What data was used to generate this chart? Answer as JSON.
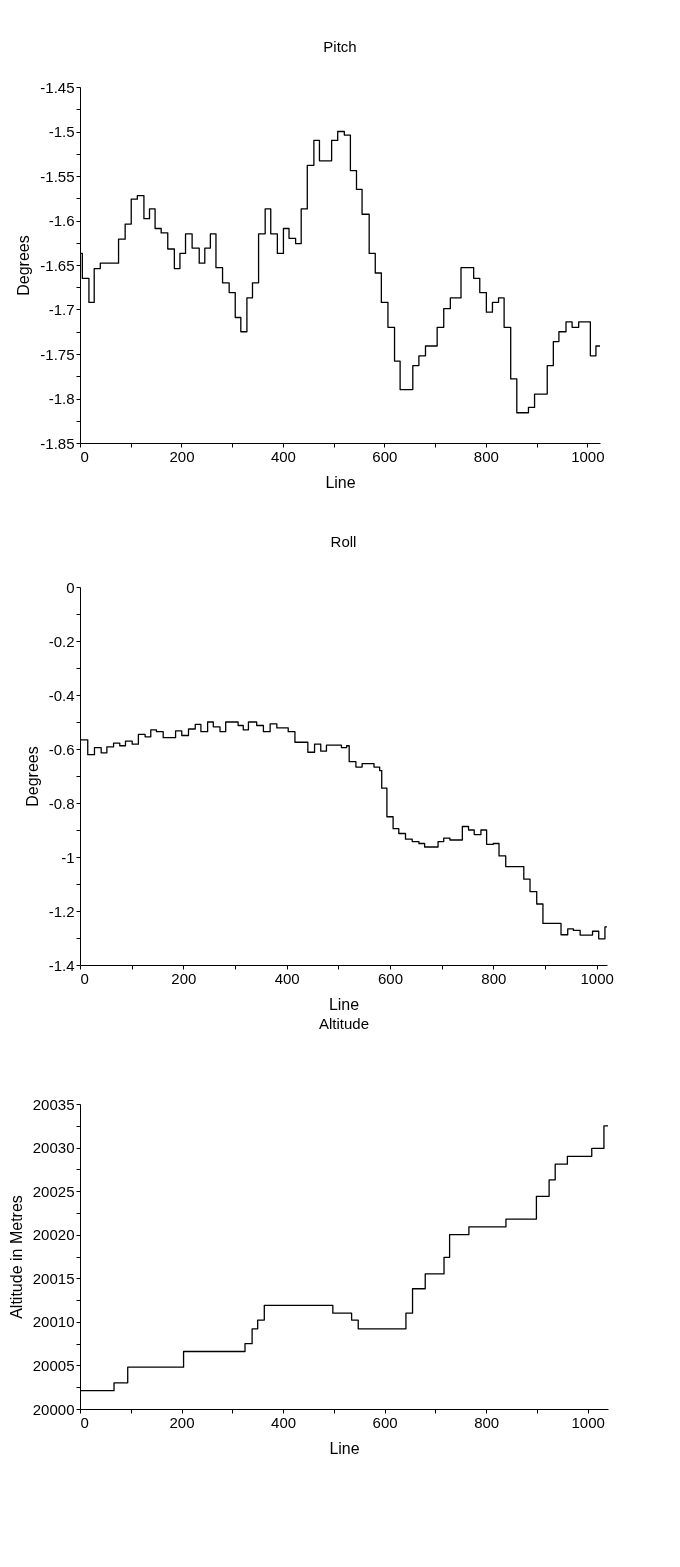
{
  "chart_data": [
    {
      "type": "step",
      "title": "Pitch",
      "xlabel": "Line",
      "ylabel": "Degrees",
      "grid": false,
      "x": [
        0,
        4.6,
        17.6,
        28,
        40,
        76,
        89,
        101,
        113,
        126,
        137,
        148,
        160,
        173,
        186,
        197,
        208,
        221,
        235,
        246,
        257,
        268,
        281,
        294,
        306,
        317,
        329,
        340,
        352,
        365,
        376,
        389,
        401,
        412,
        425,
        436,
        448,
        461,
        472,
        496,
        508,
        521,
        533,
        545,
        556,
        570,
        582,
        594,
        607,
        620,
        631,
        656,
        668,
        681,
        704,
        717,
        730,
        751,
        776,
        788,
        801,
        813,
        825,
        836,
        849,
        861,
        884,
        896,
        921,
        933,
        944,
        958,
        970,
        983,
        1006,
        1017,
        1025
      ],
      "series": [
        {
          "color": "#000000",
          "values": [
            -1.637,
            -1.665,
            -1.692,
            -1.654,
            -1.648,
            -1.621,
            -1.604,
            -1.576,
            -1.572,
            -1.598,
            -1.587,
            -1.609,
            -1.614,
            -1.632,
            -1.654,
            -1.637,
            -1.615,
            -1.631,
            -1.648,
            -1.631,
            -1.615,
            -1.653,
            -1.67,
            -1.681,
            -1.709,
            -1.725,
            -1.687,
            -1.67,
            -1.615,
            -1.587,
            -1.615,
            -1.637,
            -1.609,
            -1.62,
            -1.626,
            -1.587,
            -1.538,
            -1.51,
            -1.533,
            -1.51,
            -1.5,
            -1.504,
            -1.544,
            -1.565,
            -1.593,
            -1.637,
            -1.659,
            -1.692,
            -1.72,
            -1.758,
            -1.79,
            -1.763,
            -1.752,
            -1.741,
            -1.72,
            -1.699,
            -1.687,
            -1.653,
            -1.665,
            -1.681,
            -1.703,
            -1.692,
            -1.687,
            -1.72,
            -1.778,
            -1.816,
            -1.81,
            -1.795,
            -1.763,
            -1.736,
            -1.725,
            -1.714,
            -1.72,
            -1.714,
            -1.752,
            -1.741,
            -1.741
          ]
        }
      ],
      "xlim": [
        0,
        1025
      ],
      "ylim": [
        -1.85,
        -1.45
      ],
      "xticks": [
        0,
        {
          "value": 100,
          "label": null
        },
        200,
        {
          "value": 300,
          "label": null
        },
        400,
        {
          "value": 500,
          "label": null
        },
        600,
        {
          "value": 700,
          "label": null
        },
        800,
        {
          "value": 900,
          "label": null
        },
        1000
      ],
      "yticks": [
        -1.85,
        {
          "value": -1.825,
          "label": null
        },
        -1.8,
        {
          "value": -1.775,
          "label": null
        },
        -1.75,
        {
          "value": -1.725,
          "label": null
        },
        -1.7,
        {
          "value": -1.675,
          "label": null
        },
        -1.65,
        {
          "value": -1.625,
          "label": null
        },
        -1.6,
        {
          "value": -1.575,
          "label": null
        },
        -1.55,
        {
          "value": -1.525,
          "label": null
        },
        -1.5,
        {
          "value": -1.475,
          "label": null
        },
        -1.45
      ]
    },
    {
      "type": "step",
      "title": "Roll",
      "xlabel": "Line",
      "ylabel": "Degrees",
      "grid": false,
      "x": [
        0,
        15,
        28,
        41,
        52,
        65,
        77,
        88,
        101,
        113,
        126,
        137,
        148,
        161,
        185,
        197,
        210,
        223,
        234,
        247,
        258,
        271,
        282,
        306,
        316,
        326,
        342,
        355,
        368,
        381,
        403,
        416,
        441,
        454,
        466,
        477,
        506,
        516,
        521,
        534,
        546,
        569,
        580,
        584,
        594,
        606,
        617,
        630,
        643,
        656,
        667,
        693,
        704,
        716,
        740,
        752,
        763,
        776,
        787,
        800,
        811,
        824,
        859,
        871,
        884,
        896,
        931,
        944,
        955,
        968,
        992,
        1004,
        1016,
        1020
      ],
      "series": [
        {
          "color": "#000000",
          "values": [
            -0.566,
            -0.621,
            -0.595,
            -0.614,
            -0.592,
            -0.578,
            -0.588,
            -0.571,
            -0.582,
            -0.546,
            -0.555,
            -0.529,
            -0.536,
            -0.558,
            -0.533,
            -0.55,
            -0.526,
            -0.509,
            -0.536,
            -0.5,
            -0.518,
            -0.536,
            -0.5,
            -0.513,
            -0.529,
            -0.5,
            -0.513,
            -0.536,
            -0.507,
            -0.522,
            -0.536,
            -0.575,
            -0.612,
            -0.582,
            -0.608,
            -0.586,
            -0.595,
            -0.588,
            -0.647,
            -0.667,
            -0.654,
            -0.667,
            -0.68,
            -0.745,
            -0.851,
            -0.895,
            -0.913,
            -0.934,
            -0.943,
            -0.95,
            -0.963,
            -0.943,
            -0.93,
            -0.937,
            -0.887,
            -0.9,
            -0.917,
            -0.9,
            -0.953,
            -0.95,
            -0.996,
            -1.036,
            -1.082,
            -1.128,
            -1.174,
            -1.246,
            -1.288,
            -1.266,
            -1.272,
            -1.289,
            -1.275,
            -1.303,
            -1.259,
            -1.259
          ]
        }
      ],
      "xlim": [
        0,
        1020
      ],
      "ylim": [
        -1.4,
        0
      ],
      "xticks": [
        0,
        {
          "value": 100,
          "label": null
        },
        200,
        {
          "value": 300,
          "label": null
        },
        400,
        {
          "value": 500,
          "label": null
        },
        600,
        {
          "value": 700,
          "label": null
        },
        800,
        {
          "value": 900,
          "label": null
        },
        1000
      ],
      "yticks": [
        -1.4,
        {
          "value": -1.3,
          "label": null
        },
        -1.2,
        {
          "value": -1.1,
          "label": null
        },
        -1,
        {
          "value": -0.9,
          "label": null
        },
        -0.8,
        {
          "value": -0.7,
          "label": null
        },
        -0.6,
        {
          "value": -0.5,
          "label": null
        },
        -0.4,
        {
          "value": -0.3,
          "label": null
        },
        -0.2,
        {
          "value": -0.1,
          "label": null
        },
        0
      ]
    },
    {
      "type": "step",
      "title": "Altitude",
      "xlabel": "Line",
      "ylabel": "Altitude in Metres",
      "grid": false,
      "x": [
        0,
        67,
        94,
        204,
        325,
        339,
        350,
        363,
        498,
        535,
        548,
        642,
        655,
        680,
        717,
        728,
        766,
        839,
        899,
        924,
        936,
        960,
        1008,
        1032,
        1040
      ],
      "series": [
        {
          "color": "#000000",
          "values": [
            20002.1,
            20003,
            20004.8,
            20006.6,
            20007.5,
            20009.2,
            20010.2,
            20011.9,
            20011,
            20010.2,
            20009.2,
            20011,
            20013.8,
            20015.5,
            20017.4,
            20020,
            20020.9,
            20021.8,
            20024.4,
            20026.3,
            20028.1,
            20029,
            20029.9,
            20032.5,
            20032.5
          ]
        }
      ],
      "xlim": [
        0,
        1040
      ],
      "ylim": [
        20000,
        20035
      ],
      "xticks": [
        0,
        {
          "value": 100,
          "label": null
        },
        200,
        {
          "value": 300,
          "label": null
        },
        400,
        {
          "value": 500,
          "label": null
        },
        600,
        {
          "value": 700,
          "label": null
        },
        800,
        {
          "value": 900,
          "label": null
        },
        1000
      ],
      "yticks": [
        20000,
        {
          "value": 20002.5,
          "label": null
        },
        20005,
        {
          "value": 20007.5,
          "label": null
        },
        20010,
        {
          "value": 20012.5,
          "label": null
        },
        20015,
        {
          "value": 20017.5,
          "label": null
        },
        20020,
        {
          "value": 20022.5,
          "label": null
        },
        20025,
        {
          "value": 20027.5,
          "label": null
        },
        20030,
        {
          "value": 20032.5,
          "label": null
        },
        20035
      ]
    }
  ]
}
